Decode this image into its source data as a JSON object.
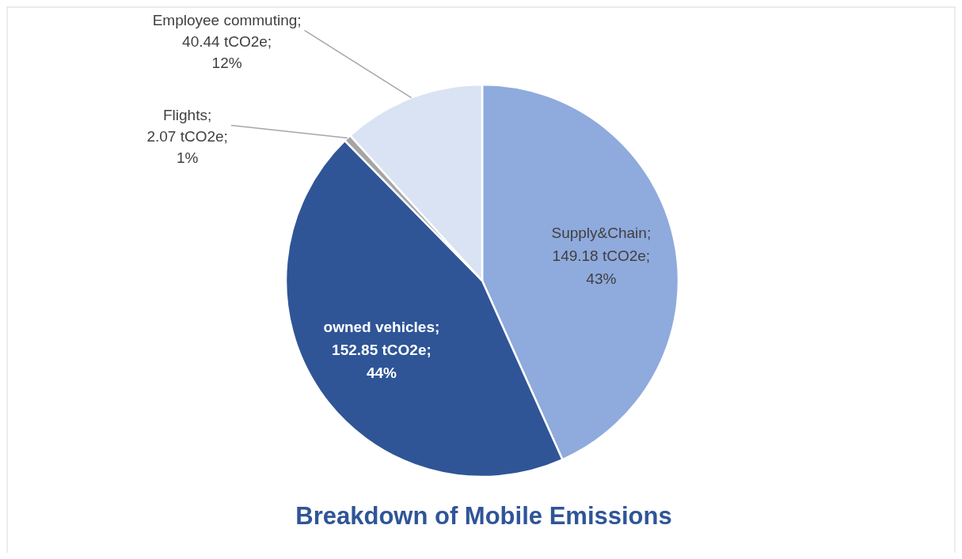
{
  "chart_data": {
    "type": "pie",
    "title": "Breakdown of Mobile Emissions",
    "categories": [
      "Supply&Chain",
      "owned vehicles",
      "Flights",
      "Employee commuting"
    ],
    "values": [
      149.18,
      152.85,
      2.07,
      40.44
    ],
    "colors": [
      "#8faadc",
      "#2f5597",
      "#a5a5a5",
      "#dae3f3"
    ],
    "value_labels": [
      "; 149.18 tCO2e; 43%",
      "; 152.85 tCO2e; 44%",
      "; 2.07 tCO2e; 1%",
      "; 40.44 tCO2e; 12%"
    ]
  }
}
